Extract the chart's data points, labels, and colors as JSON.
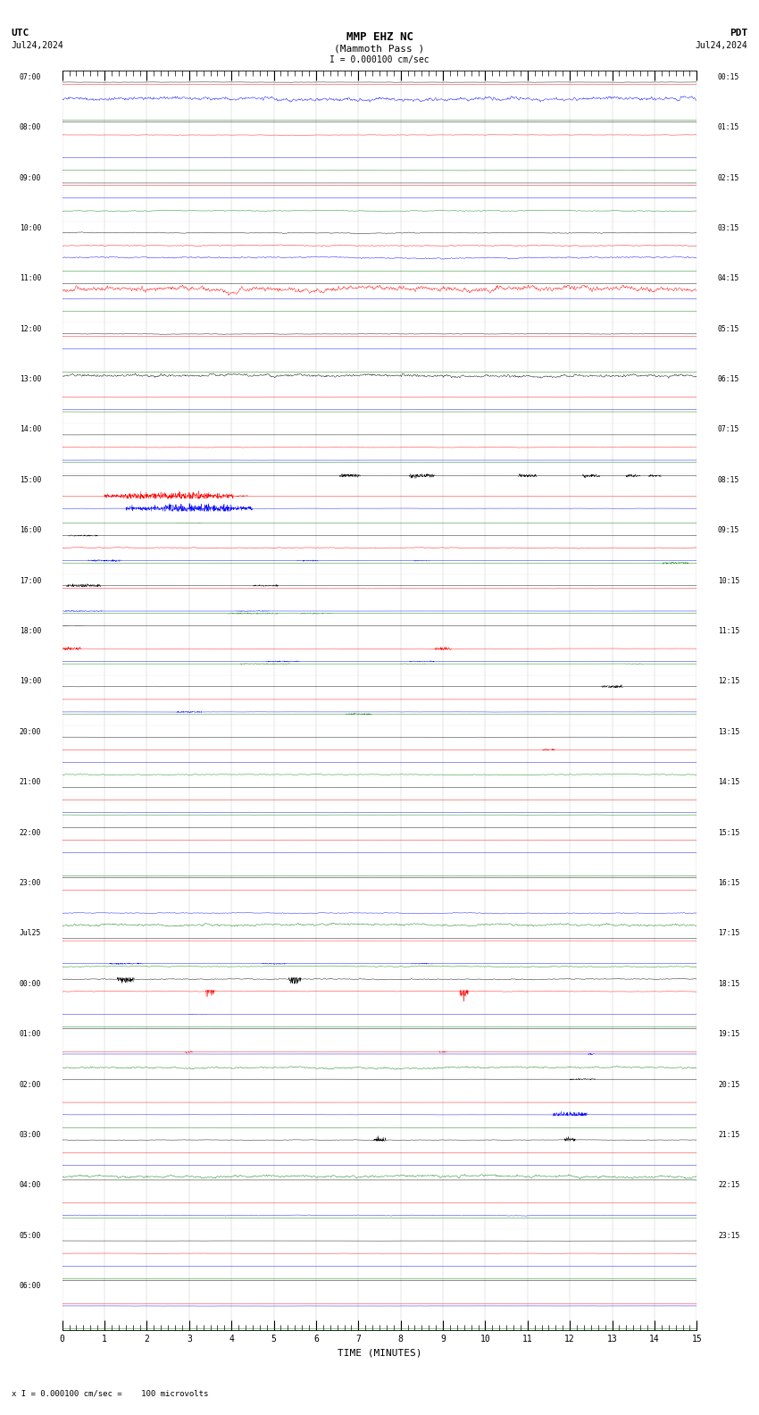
{
  "title_line1": "MMP EHZ NC",
  "title_line2": "(Mammoth Pass )",
  "scale_text": "I = 0.000100 cm/sec",
  "utc_label": "UTC",
  "pdt_label": "PDT",
  "date_left": "Jul24,2024",
  "date_right": "Jul24,2024",
  "xlabel": "TIME (MINUTES)",
  "bottom_note": "x I = 0.000100 cm/sec =    100 microvolts",
  "bg_color": "#ffffff",
  "trace_colors": [
    "#000000",
    "#ff0000",
    "#0000ff",
    "#008000"
  ],
  "utc_times": [
    "07:00",
    "08:00",
    "09:00",
    "10:00",
    "11:00",
    "12:00",
    "13:00",
    "14:00",
    "15:00",
    "16:00",
    "17:00",
    "18:00",
    "19:00",
    "20:00",
    "21:00",
    "22:00",
    "23:00",
    "Jul25",
    "00:00",
    "01:00",
    "02:00",
    "03:00",
    "04:00",
    "05:00",
    "06:00"
  ],
  "pdt_times": [
    "00:15",
    "01:15",
    "02:15",
    "03:15",
    "04:15",
    "05:15",
    "06:15",
    "07:15",
    "08:15",
    "09:15",
    "10:15",
    "11:15",
    "12:15",
    "13:15",
    "14:15",
    "15:15",
    "16:15",
    "17:15",
    "18:15",
    "19:15",
    "20:15",
    "21:15",
    "22:15",
    "23:15",
    ""
  ],
  "fig_width": 8.5,
  "fig_height": 15.84,
  "time_points": 3000
}
